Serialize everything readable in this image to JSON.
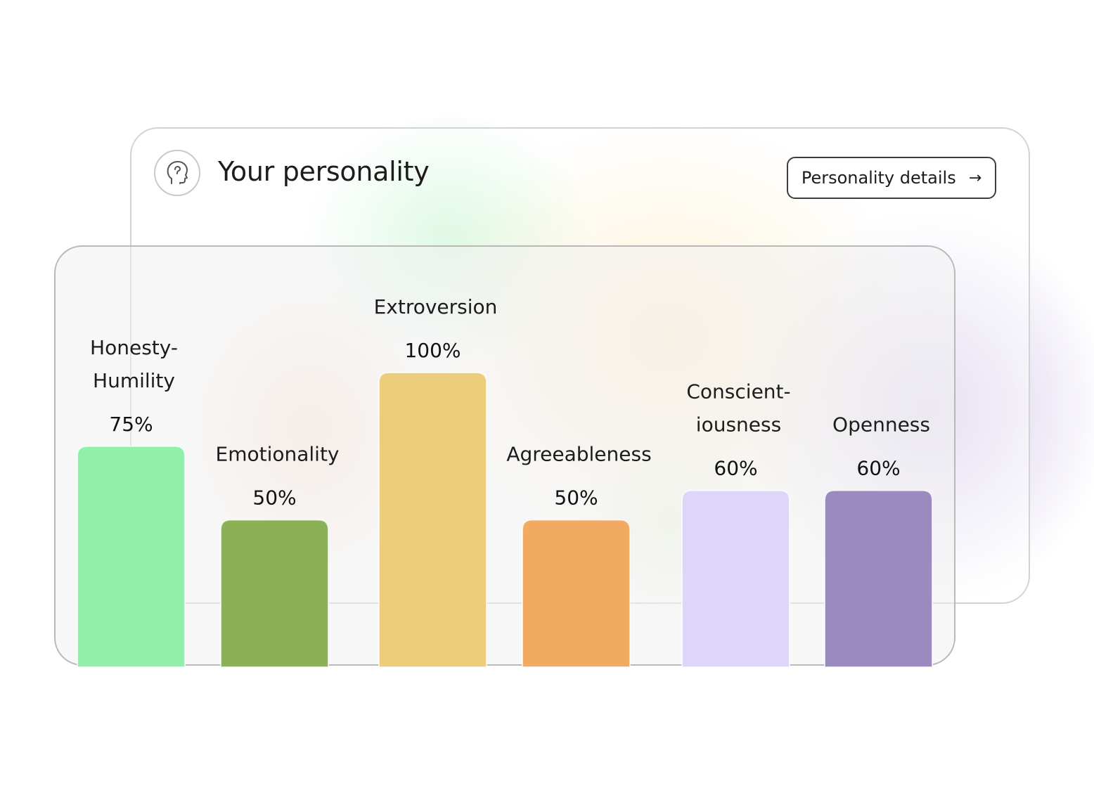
{
  "header": {
    "title": "Your personality",
    "icon": "head-profile-icon",
    "details_button_label": "Personality details",
    "details_button_icon": "arrow-right-icon"
  },
  "chart_data": {
    "type": "bar",
    "categories": [
      "Honesty-Humility",
      "Emotionality",
      "Extroversion",
      "Agreeableness",
      "Conscientiousness",
      "Openness"
    ],
    "category_display_lines": [
      [
        "Honesty-",
        "Humility"
      ],
      [
        "Emotionality"
      ],
      [
        "Extroversion"
      ],
      [
        "Agreeableness"
      ],
      [
        "Conscient-",
        "iousness"
      ],
      [
        "Openness"
      ]
    ],
    "values": [
      75,
      50,
      100,
      50,
      60,
      60
    ],
    "value_labels": [
      "75%",
      "50%",
      "100%",
      "50%",
      "60%",
      "60%"
    ],
    "colors": [
      "#90f0aa",
      "#8ab153",
      "#eccd7c",
      "#f2aa63",
      "#ddd5fa",
      "#9b8abf"
    ],
    "ylim": [
      0,
      100
    ],
    "grid": false
  }
}
